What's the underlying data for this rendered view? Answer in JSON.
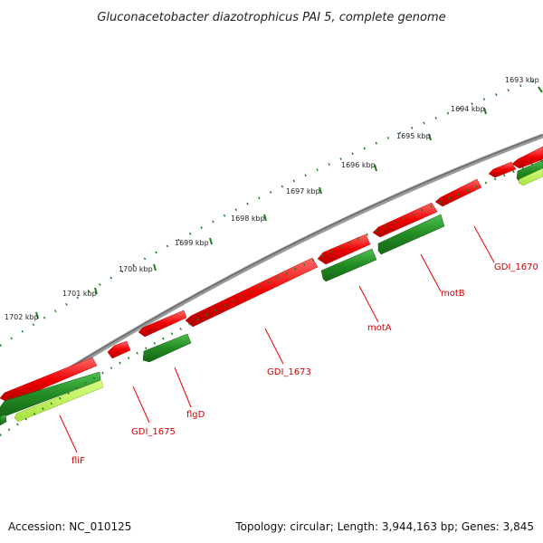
{
  "title": "Gluconacetobacter diazotrophicus PAI 5, complete genome",
  "kbp_ticks": [
    "1693 kbp",
    "1694 kbp",
    "1695 kbp",
    "1696 kbp",
    "1697 kbp",
    "1698 kbp",
    "1699 kbp",
    "1700 kbp",
    "1701 kbp",
    "1702 kbp"
  ],
  "gene_labels": [
    "GDI_1670",
    "motB",
    "motA",
    "GDI_1673",
    "flgD",
    "GDI_1675",
    "fliF"
  ],
  "footer": {
    "accession": "Accession: NC_010125",
    "stats": "Topology: circular; Length: 3,944,163 bp; Genes: 3,845"
  },
  "colors": {
    "backbone": "#808080",
    "forward_cds": "#ee0000",
    "reverse_cds": "#228b22",
    "rna": "#b5f04a",
    "scale": "#1a7f1a",
    "label": "#d40000"
  }
}
